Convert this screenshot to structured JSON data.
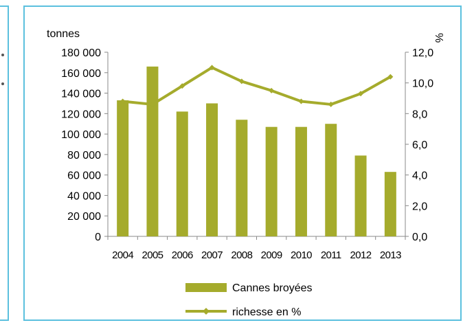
{
  "chart_data": {
    "type": "bar",
    "categories": [
      "2004",
      "2005",
      "2006",
      "2007",
      "2008",
      "2009",
      "2010",
      "2011",
      "2012",
      "2013"
    ],
    "series": [
      {
        "name": "Cannes broyées",
        "type": "bar",
        "axis": "left",
        "color": "#a5ab2c",
        "values": [
          133000,
          166000,
          122000,
          130000,
          114000,
          107000,
          107000,
          110000,
          79000,
          63000
        ]
      },
      {
        "name": "richesse en %",
        "type": "line",
        "axis": "right",
        "color": "#a5ab2c",
        "marker": "diamond",
        "values": [
          8.8,
          8.6,
          9.8,
          11.0,
          10.1,
          9.5,
          8.8,
          8.6,
          9.3,
          10.4
        ]
      }
    ],
    "ylabel_left": "tonnes",
    "ylabel_right": "%",
    "ylim_left": [
      0,
      180000
    ],
    "ylim_right": [
      0,
      12
    ],
    "yticks_left": [
      "0",
      "20 000",
      "40 000",
      "60 000",
      "80 000",
      "100 000",
      "120 000",
      "140 000",
      "160 000",
      "180 000"
    ],
    "yticks_right": [
      "0,0",
      "2,0",
      "4,0",
      "6,0",
      "8,0",
      "10,0",
      "12,0"
    ],
    "grid": false,
    "legend_position": "bottom"
  }
}
